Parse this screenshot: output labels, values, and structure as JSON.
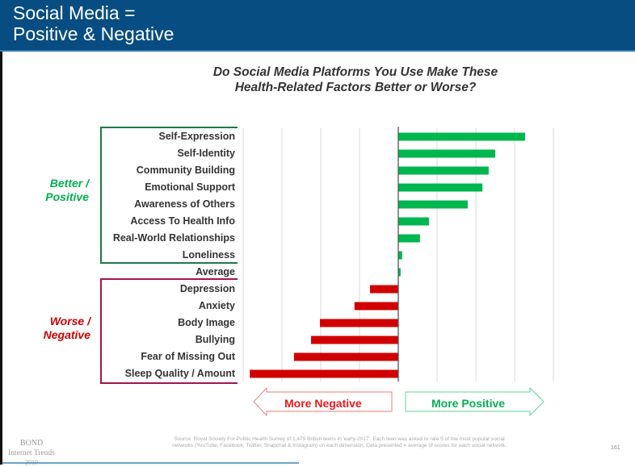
{
  "header": {
    "title_line1": "Social Media =",
    "title_line2": "Positive & Negative"
  },
  "chart_data": {
    "type": "bar",
    "orientation": "horizontal",
    "title_line1": "Do Social Media Platforms You Use Make These",
    "title_line2": "Health-Related Factors Better or Worse?",
    "xlabel": "",
    "ylabel": "",
    "grid": true,
    "xlim": [
      -4,
      4
    ],
    "categories": [
      "Self-Expression",
      "Self-Identity",
      "Community Building",
      "Emotional Support",
      "Awareness of Others",
      "Access To Health Info",
      "Real-World Relationships",
      "Loneliness",
      "Average",
      "Depression",
      "Anxiety",
      "Body Image",
      "Bullying",
      "Fear of Missing Out",
      "Sleep Quality / Amount"
    ],
    "values": [
      3.27,
      2.5,
      2.33,
      2.17,
      1.79,
      0.79,
      0.56,
      0.1,
      0.06,
      -0.73,
      -1.13,
      -2.02,
      -2.25,
      -2.69,
      -3.83
    ],
    "colors": {
      "positive": "#00b64f",
      "negative": "#d00000"
    },
    "groups": [
      {
        "label_line1": "Better /",
        "label_line2": "Positive",
        "color": "#00b050",
        "border": "#1b7a45"
      },
      {
        "label_line1": "Worse /",
        "label_line2": "Negative",
        "color": "#cc0000",
        "border": "#a3134f"
      }
    ],
    "arrows": {
      "negative_label": "More Negative",
      "positive_label": "More Positive",
      "negative_color": "#e8191c",
      "positive_color": "#00b050"
    }
  },
  "footer": {
    "source_line1": "Source: Royal Society For Public Health Survey of 1,479 British teens in 'early-2017'. Each teen was asked to rate 5 of the most popular social",
    "source_line2": "networks (YouTube, Facebook, Twitter, Snapchat & Instagram) on each dimension.  Data presented = average of scores for each social network.",
    "bond_line1": "BOND",
    "bond_line2": "Internet Trends",
    "bond_line3": "2019",
    "page_number": "161"
  }
}
